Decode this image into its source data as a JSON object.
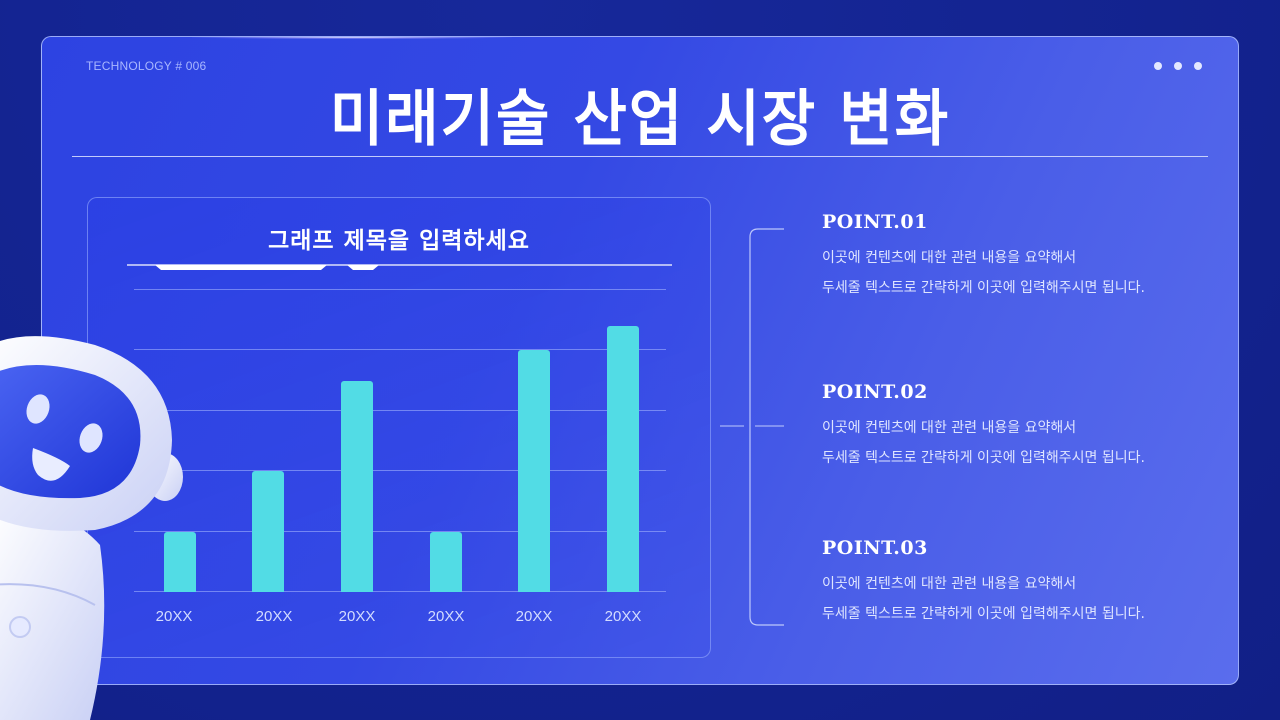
{
  "header": {
    "tag": "TECHNOLOGY # 006",
    "title": "미래기술 산업 시장 변화",
    "menu_dots": "more-dots-icon"
  },
  "chart_panel": {
    "title": "그래프 제목을 입력하세요"
  },
  "chart_data": {
    "type": "bar",
    "title": "그래프 제목을 입력하세요",
    "categories": [
      "20XX",
      "20XX",
      "20XX",
      "20XX",
      "20XX",
      "20XX"
    ],
    "values": [
      1,
      2,
      3.5,
      1,
      4,
      4.4
    ],
    "xlabel": "",
    "ylabel": "",
    "ylim": [
      0,
      5
    ],
    "grid": true,
    "gridlines": 5,
    "legend": null,
    "bar_color": "#52dce5"
  },
  "points": [
    {
      "title": "POINT.01",
      "line1": "이곳에 컨텐츠에 대한 관련 내용을 요약해서",
      "line2": "두세줄 텍스트로 간략하게 이곳에 입력해주시면 됩니다."
    },
    {
      "title": "POINT.02",
      "line1": "이곳에 컨텐츠에 대한 관련 내용을 요약해서",
      "line2": "두세줄 텍스트로 간략하게 이곳에 입력해주시면 됩니다."
    },
    {
      "title": "POINT.03",
      "line1": "이곳에 컨텐츠에 대한 관련 내용을 요약해서",
      "line2": "두세줄 텍스트로 간략하게 이곳에 입력해주시면 됩니다."
    }
  ],
  "colors": {
    "background": "#13238f",
    "panel_start": "#2d43e2",
    "panel_end": "#5a6ded",
    "bar": "#52dce5",
    "text": "#ffffff"
  },
  "decor": {
    "mascot": "robot-mascot-illustration"
  }
}
